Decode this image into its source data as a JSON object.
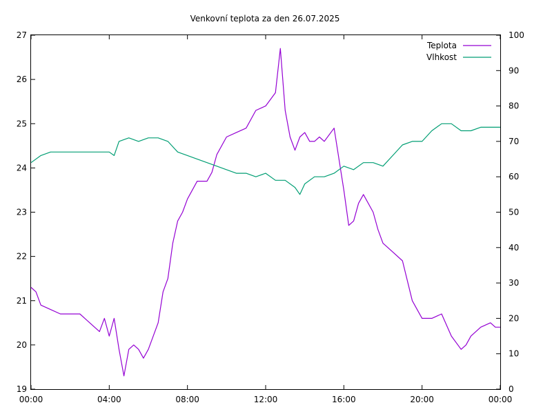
{
  "chart_data": {
    "type": "line",
    "title": "Venkovní teplota za den 26.07.2025",
    "xlabel": "",
    "ylabel": "",
    "y2label": "",
    "grid": false,
    "legend_position": "top-right",
    "x_ticks": [
      "00:00",
      "04:00",
      "08:00",
      "12:00",
      "16:00",
      "20:00",
      "00:00"
    ],
    "x_range_hours": [
      0,
      24
    ],
    "y_left": {
      "range": [
        19,
        27
      ],
      "ticks": [
        "19",
        "20",
        "21",
        "22",
        "23",
        "24",
        "25",
        "26",
        "27"
      ]
    },
    "y_right": {
      "range": [
        0,
        100
      ],
      "ticks": [
        "0",
        "10",
        "20",
        "30",
        "40",
        "50",
        "60",
        "70",
        "80",
        "90",
        "100"
      ]
    },
    "series": [
      {
        "name": "Teplota",
        "axis": "left",
        "color": "#9400d3",
        "x": [
          "00:00",
          "00:15",
          "00:30",
          "01:00",
          "01:30",
          "02:00",
          "02:30",
          "03:00",
          "03:30",
          "03:45",
          "04:00",
          "04:15",
          "04:30",
          "04:45",
          "05:00",
          "05:15",
          "05:30",
          "05:45",
          "06:00",
          "06:15",
          "06:30",
          "06:45",
          "07:00",
          "07:15",
          "07:30",
          "07:45",
          "08:00",
          "08:30",
          "09:00",
          "09:15",
          "09:30",
          "10:00",
          "10:30",
          "11:00",
          "11:30",
          "12:00",
          "12:30",
          "12:45",
          "13:00",
          "13:15",
          "13:30",
          "13:45",
          "14:00",
          "14:15",
          "14:30",
          "14:45",
          "15:00",
          "15:30",
          "16:00",
          "16:15",
          "16:30",
          "16:45",
          "17:00",
          "17:30",
          "17:45",
          "18:00",
          "18:30",
          "19:00",
          "19:30",
          "20:00",
          "20:30",
          "21:00",
          "21:30",
          "22:00",
          "22:15",
          "22:30",
          "23:00",
          "23:30",
          "23:45",
          "24:00"
        ],
        "values": [
          21.3,
          21.2,
          20.9,
          20.8,
          20.7,
          20.7,
          20.7,
          20.5,
          20.3,
          20.6,
          20.2,
          20.6,
          19.9,
          19.3,
          19.9,
          20.0,
          19.9,
          19.7,
          19.9,
          20.2,
          20.5,
          21.2,
          21.5,
          22.3,
          22.8,
          23.0,
          23.3,
          23.7,
          23.7,
          23.9,
          24.3,
          24.7,
          24.8,
          24.9,
          25.3,
          25.4,
          25.7,
          26.7,
          25.3,
          24.7,
          24.4,
          24.7,
          24.8,
          24.6,
          24.6,
          24.7,
          24.6,
          24.9,
          23.5,
          22.7,
          22.8,
          23.2,
          23.4,
          23.0,
          22.6,
          22.3,
          22.1,
          21.9,
          21.0,
          20.6,
          20.6,
          20.7,
          20.2,
          19.9,
          20.0,
          20.2,
          20.4,
          20.5,
          20.4,
          20.4
        ]
      },
      {
        "name": "Vlhkost",
        "axis": "right",
        "color": "#009e73",
        "x": [
          "00:00",
          "00:30",
          "01:00",
          "01:30",
          "02:00",
          "02:30",
          "03:00",
          "03:30",
          "04:00",
          "04:15",
          "04:30",
          "05:00",
          "05:30",
          "06:00",
          "06:30",
          "07:00",
          "07:30",
          "08:00",
          "08:30",
          "09:00",
          "09:30",
          "10:00",
          "10:30",
          "11:00",
          "11:30",
          "12:00",
          "12:30",
          "13:00",
          "13:30",
          "13:45",
          "14:00",
          "14:30",
          "15:00",
          "15:30",
          "16:00",
          "16:30",
          "17:00",
          "17:30",
          "18:00",
          "18:30",
          "19:00",
          "19:30",
          "20:00",
          "20:30",
          "21:00",
          "21:30",
          "22:00",
          "22:30",
          "23:00",
          "23:30",
          "24:00"
        ],
        "values": [
          64,
          66,
          67,
          67,
          67,
          67,
          67,
          67,
          67,
          66,
          70,
          71,
          70,
          71,
          71,
          70,
          67,
          66,
          65,
          64,
          63,
          62,
          61,
          61,
          60,
          61,
          59,
          59,
          57,
          55,
          58,
          60,
          60,
          61,
          63,
          62,
          64,
          64,
          63,
          66,
          69,
          70,
          70,
          73,
          75,
          75,
          73,
          73,
          74,
          74,
          74
        ]
      }
    ]
  }
}
